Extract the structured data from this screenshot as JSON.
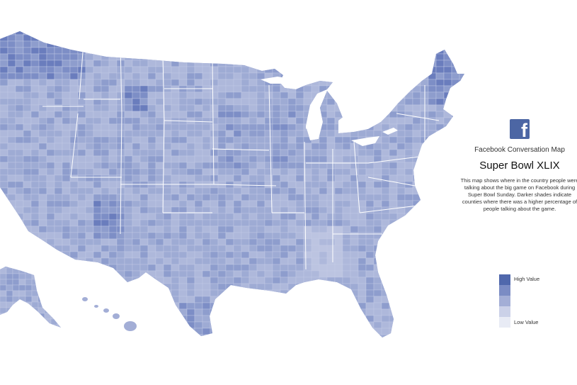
{
  "map": {
    "region": "Contiguous United States, Alaska and Hawaii (county level)",
    "fill_base_color": "#9aa7d2",
    "border_color": "#ffffff"
  },
  "icon": {
    "name": "facebook-icon",
    "color": "#4c66a4",
    "glyph": "f"
  },
  "panel": {
    "subtitle": "Facebook Conversation Map",
    "title": "Super Bowl XLIX",
    "description": "This map shows where in the country people were talking about the big game on Facebook during Super Bowl Sunday. Darker shades indicate counties where there was a higher percentage of people talking about the game."
  },
  "legend": {
    "high_label": "High Value",
    "low_label": "Low Value",
    "colors": [
      "#5068ac",
      "#7b8cc4",
      "#a3aed6",
      "#cbd1e8",
      "#e8ebf5"
    ]
  }
}
